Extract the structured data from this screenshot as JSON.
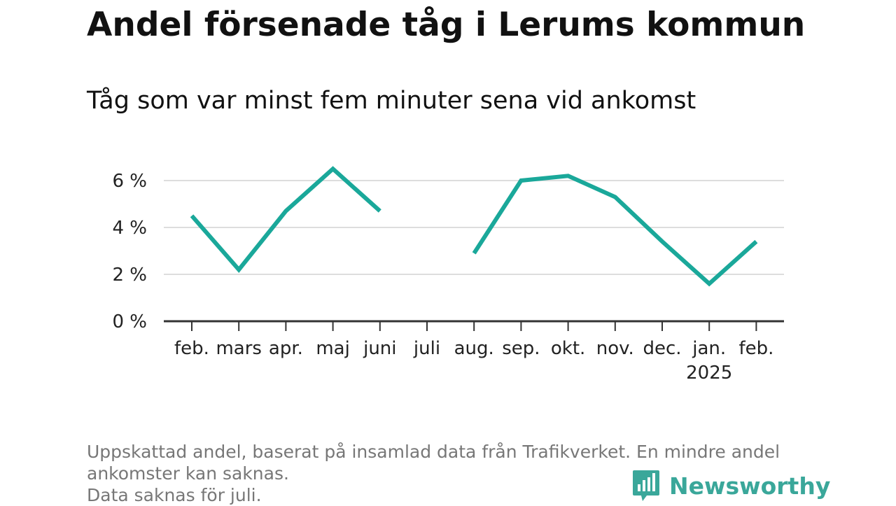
{
  "chart_data": {
    "type": "line",
    "title": "Andel försenade tåg i Lerums kommun",
    "subtitle": "Tåg som var minst fem minuter sena vid ankomst",
    "x": [
      "feb.",
      "mars",
      "apr.",
      "maj",
      "juni",
      "juli",
      "aug.",
      "sep.",
      "okt.",
      "nov.",
      "dec.",
      "jan.",
      "feb."
    ],
    "x_sublabels": [
      "",
      "",
      "",
      "",
      "",
      "",
      "",
      "",
      "",
      "",
      "",
      "2025",
      ""
    ],
    "series": [
      {
        "values": [
          4.5,
          2.2,
          4.7,
          6.5,
          4.7,
          null,
          2.9,
          6.0,
          6.2,
          5.3,
          3.4,
          1.6,
          3.4
        ],
        "color": "#1aa89a"
      }
    ],
    "ylim": [
      0,
      6.5
    ],
    "yticks": [
      0,
      2,
      4,
      6
    ],
    "ytick_labels": [
      "0 %",
      "2 %",
      "4 %",
      "6 %"
    ],
    "grid": true,
    "legend": "none"
  },
  "footer": {
    "lines": [
      "Uppskattad andel, baserat på insamlad data från Trafikverket. En mindre andel",
      "ankomster kan saknas.",
      "Data saknas för juli."
    ]
  },
  "brand": {
    "name": "Newsworthy",
    "icon": "newsworthy-logo-icon",
    "color": "#3aa79a"
  }
}
